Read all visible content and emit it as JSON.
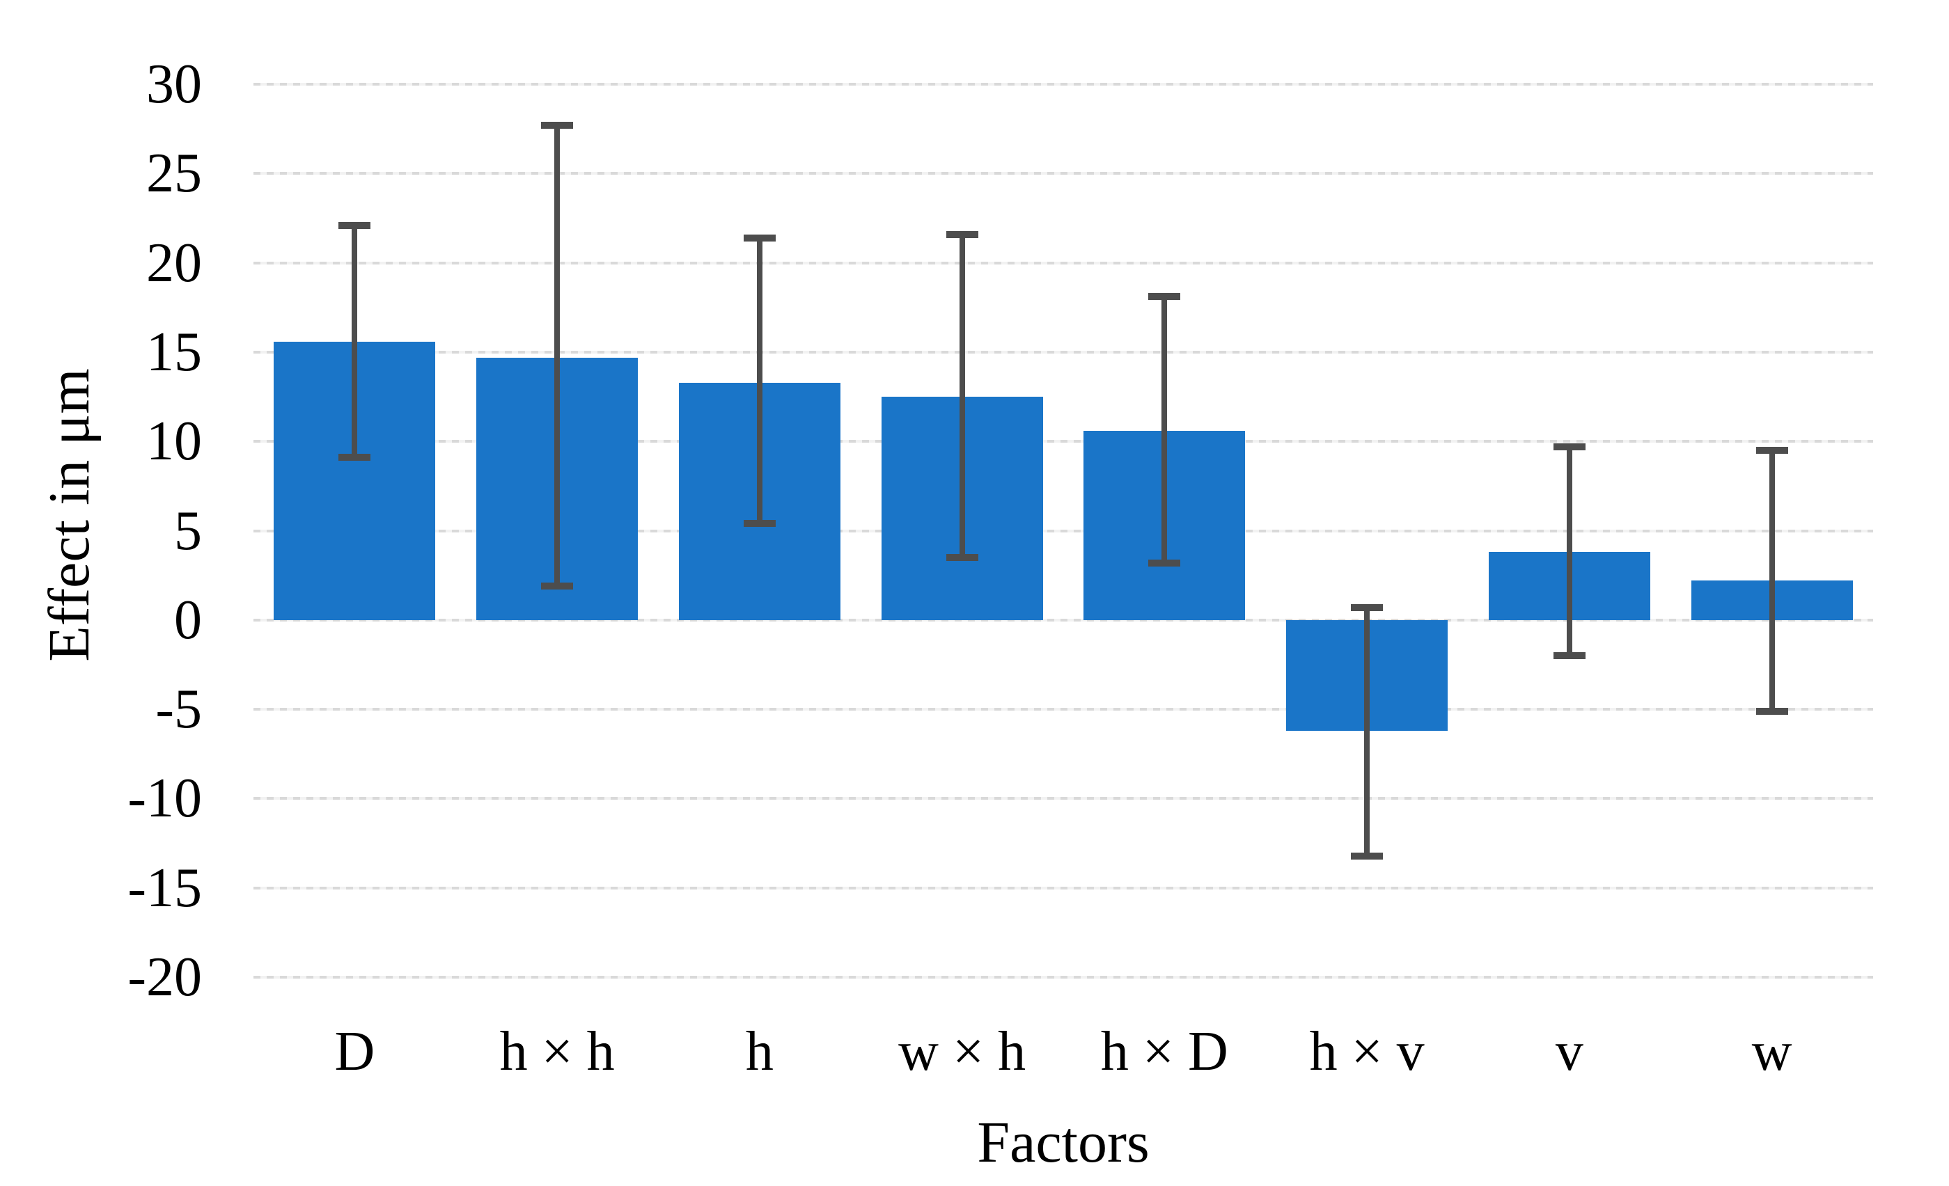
{
  "chart_data": {
    "type": "bar",
    "title": "",
    "xlabel": "Factors",
    "ylabel": "Effect in μm",
    "categories": [
      "D",
      "h × h",
      "h",
      "w × h",
      "h × D",
      "h × v",
      "v",
      "w"
    ],
    "values": [
      15.6,
      14.7,
      13.3,
      12.5,
      10.6,
      -6.2,
      3.8,
      2.2
    ],
    "error_low": [
      9.1,
      1.9,
      5.4,
      3.5,
      3.2,
      -13.2,
      -2.0,
      -5.1
    ],
    "error_high": [
      22.1,
      27.7,
      21.4,
      21.6,
      18.1,
      0.7,
      9.7,
      9.5
    ],
    "ylim": [
      -20,
      30
    ],
    "grid": true,
    "legend": "none",
    "bar_color": "#1A75C8",
    "error_bar_color": "#4D4D4D",
    "gridline_color": "#D9D9D9"
  },
  "y_axis": {
    "title": "Effect in μm",
    "ticks": [
      "30",
      "25",
      "20",
      "15",
      "10",
      "5",
      "0",
      "-5",
      "-10",
      "-15",
      "-20"
    ]
  },
  "x_axis": {
    "title": "Factors"
  }
}
